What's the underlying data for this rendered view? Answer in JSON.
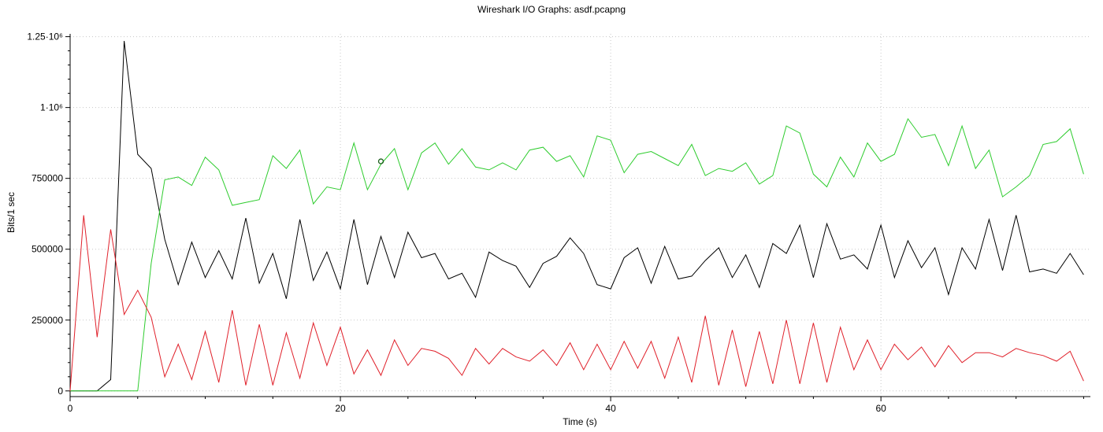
{
  "chart_data": {
    "type": "line",
    "title": "Wireshark I/O Graphs: asdf.pcapng",
    "xlabel": "Time (s)",
    "ylabel": "Bits/1 sec",
    "xlim": [
      0,
      75.5
    ],
    "ylim": [
      -20000,
      1260000
    ],
    "x_ticks": [
      0,
      20,
      40,
      60
    ],
    "x_tick_labels": [
      "0",
      "20",
      "40",
      "60"
    ],
    "y_ticks": [
      0,
      250000,
      500000,
      750000,
      1000000,
      1250000
    ],
    "y_tick_labels": [
      "0",
      "250000",
      "500000",
      "750000",
      "1·10⁶",
      "1.25·10⁶"
    ],
    "grid": true,
    "marker": {
      "x": 23,
      "y": 810000
    },
    "series": [
      {
        "color": "#000000",
        "values": [
          0,
          0,
          0,
          40000,
          1235000,
          835000,
          785000,
          535000,
          375000,
          525000,
          400000,
          495000,
          395000,
          610000,
          380000,
          485000,
          325000,
          605000,
          390000,
          490000,
          360000,
          605000,
          375000,
          545000,
          400000,
          560000,
          470000,
          485000,
          395000,
          415000,
          330000,
          490000,
          460000,
          440000,
          365000,
          450000,
          475000,
          540000,
          485000,
          375000,
          360000,
          470000,
          505000,
          380000,
          510000,
          395000,
          405000,
          460000,
          505000,
          400000,
          480000,
          365000,
          520000,
          485000,
          585000,
          400000,
          590000,
          465000,
          480000,
          430000,
          585000,
          400000,
          530000,
          435000,
          505000,
          340000,
          505000,
          430000,
          605000,
          425000,
          620000,
          420000,
          430000,
          415000,
          485000,
          410000
        ]
      },
      {
        "color": "#2ecc2e",
        "values": [
          0,
          0,
          0,
          0,
          0,
          0,
          450000,
          745000,
          755000,
          725000,
          825000,
          780000,
          655000,
          665000,
          675000,
          830000,
          785000,
          850000,
          660000,
          720000,
          710000,
          875000,
          710000,
          800000,
          855000,
          710000,
          840000,
          875000,
          800000,
          855000,
          790000,
          780000,
          805000,
          780000,
          850000,
          860000,
          810000,
          830000,
          755000,
          900000,
          885000,
          770000,
          835000,
          845000,
          820000,
          795000,
          870000,
          760000,
          785000,
          775000,
          805000,
          730000,
          760000,
          935000,
          910000,
          765000,
          720000,
          825000,
          755000,
          875000,
          810000,
          835000,
          960000,
          895000,
          905000,
          795000,
          935000,
          785000,
          850000,
          685000,
          720000,
          760000,
          870000,
          880000,
          925000,
          765000
        ]
      },
      {
        "color": "#e0202a",
        "values": [
          0,
          620000,
          190000,
          570000,
          270000,
          355000,
          260000,
          50000,
          165000,
          40000,
          210000,
          30000,
          285000,
          20000,
          235000,
          20000,
          205000,
          45000,
          240000,
          90000,
          225000,
          60000,
          145000,
          55000,
          180000,
          90000,
          150000,
          140000,
          115000,
          55000,
          150000,
          95000,
          150000,
          120000,
          105000,
          145000,
          90000,
          170000,
          75000,
          165000,
          75000,
          175000,
          80000,
          175000,
          45000,
          190000,
          30000,
          265000,
          20000,
          215000,
          15000,
          210000,
          25000,
          250000,
          25000,
          240000,
          30000,
          225000,
          75000,
          180000,
          75000,
          165000,
          110000,
          155000,
          85000,
          160000,
          100000,
          135000,
          135000,
          120000,
          150000,
          135000,
          125000,
          105000,
          140000,
          35000
        ]
      }
    ]
  }
}
